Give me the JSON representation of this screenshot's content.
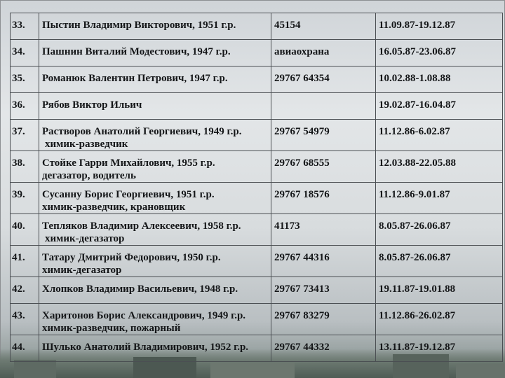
{
  "rows": [
    {
      "num": "33.",
      "name": "Пыстин Владимир Викторович, 1951 г.р.",
      "role": "",
      "doc": "45154",
      "period": "11.09.87-19.12.87"
    },
    {
      "num": "34.",
      "name": "Пашнин Виталий Модестович, 1947 г.р.",
      "role": "",
      "doc": "авиаохрана",
      "period": "16.05.87-23.06.87"
    },
    {
      "num": "35.",
      "name": "Романюк Валентин Петрович, 1947 г.р.",
      "role": "",
      "doc": "29767 64354",
      "period": "10.02.88-1.08.88"
    },
    {
      "num": "36.",
      "name": "Рябов Виктор Ильич",
      "role": "",
      "doc": "",
      "period": "19.02.87-16.04.87"
    },
    {
      "num": "37.",
      "name": "Растворов Анатолий Георгиевич, 1949 г.р.",
      "role": "химик-разведчик",
      "doc": "29767 54979",
      "period": "11.12.86-6.02.87"
    },
    {
      "num": "38.",
      "name": "Стойке Гарри Михайлович, 1955 г.р.",
      "role": "дегазатор, водитель",
      "doc": "29767 68555",
      "period": "12.03.88-22.05.88"
    },
    {
      "num": "39.",
      "name": "Сусанну Борис Георгиевич, 1951 г.р.",
      "role": "химик-разведчик, крановщик",
      "doc": "29767 18576",
      "period": "11.12.86-9.01.87"
    },
    {
      "num": "40.",
      "name": "Тепляков Владимир Алексеевич, 1958 г.р.",
      "role": "химик-дегазатор",
      "doc": "41173",
      "period": "8.05.87-26.06.87"
    },
    {
      "num": "41.",
      "name": "Татару Дмитрий Федорович, 1950 г.р.",
      "role": "химик-дегазатор",
      "doc": "29767 44316",
      "period": "8.05.87-26.06.87"
    },
    {
      "num": "42.",
      "name": "Хлопков Владимир Васильевич, 1948 г.р.",
      "role": "",
      "doc": "29767 73413",
      "period": "19.11.87-19.01.88"
    },
    {
      "num": "43.",
      "name": "Харитонов Борис Александрович, 1949 г.р.",
      "role": "химик-разведчик, пожарный",
      "doc": "29767 83279",
      "period": "11.12.86-26.02.87"
    },
    {
      "num": "44.",
      "name": "Шулько Анатолий Владимирович, 1952 г.р.",
      "role": "",
      "doc": "29767 44332",
      "period": "13.11.87-19.12.87"
    }
  ]
}
